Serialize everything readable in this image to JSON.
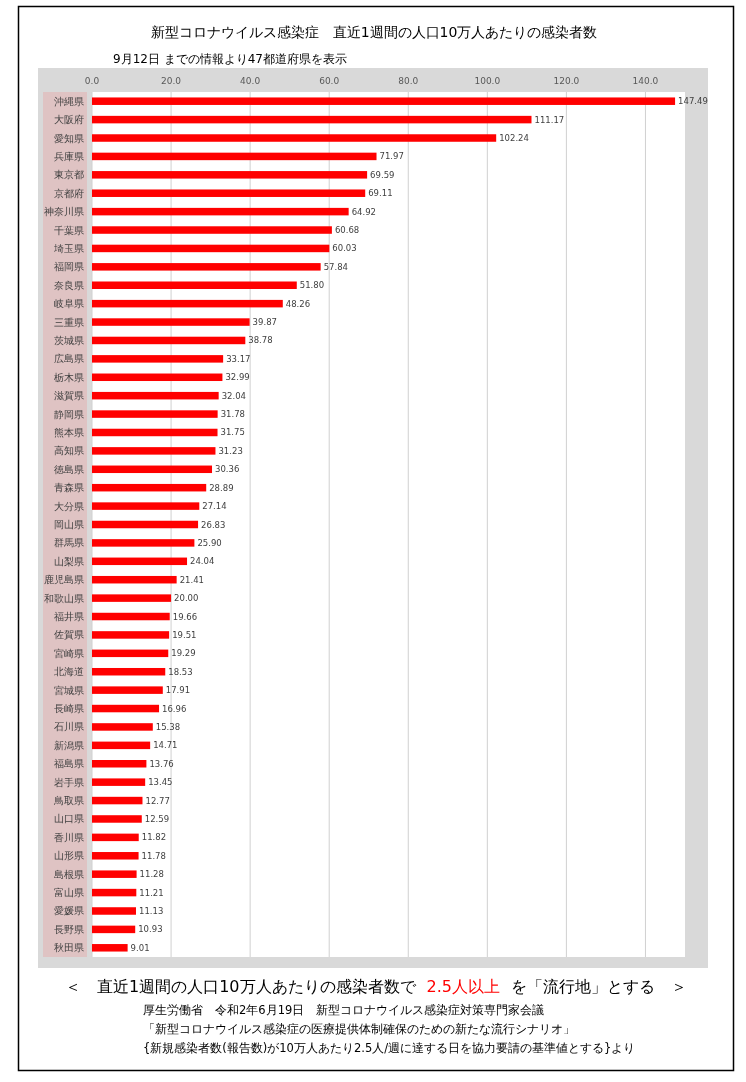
{
  "chart_data": {
    "type": "bar",
    "orientation": "horizontal",
    "title": "新型コロナウイルス感染症　直近1週間の人口10万人あたりの感染者数",
    "subtitle": "9月12日 までの情報より47都道府県を表示",
    "categories": [
      "沖縄県",
      "大阪府",
      "愛知県",
      "兵庫県",
      "東京都",
      "京都府",
      "神奈川県",
      "千葉県",
      "埼玉県",
      "福岡県",
      "奈良県",
      "岐阜県",
      "三重県",
      "茨城県",
      "広島県",
      "栃木県",
      "滋賀県",
      "静岡県",
      "熊本県",
      "高知県",
      "徳島県",
      "青森県",
      "大分県",
      "岡山県",
      "群馬県",
      "山梨県",
      "鹿児島県",
      "和歌山県",
      "福井県",
      "佐賀県",
      "宮崎県",
      "北海道",
      "宮城県",
      "長崎県",
      "石川県",
      "新潟県",
      "福島県",
      "岩手県",
      "鳥取県",
      "山口県",
      "香川県",
      "山形県",
      "島根県",
      "富山県",
      "愛媛県",
      "長野県",
      "秋田県"
    ],
    "values": [
      147.49,
      111.17,
      102.24,
      71.97,
      69.59,
      69.11,
      64.92,
      60.68,
      60.03,
      57.84,
      51.8,
      48.26,
      39.87,
      38.78,
      33.17,
      32.99,
      32.04,
      31.78,
      31.75,
      31.23,
      30.36,
      28.89,
      27.14,
      26.83,
      25.9,
      24.04,
      21.41,
      20.0,
      19.66,
      19.51,
      19.29,
      18.53,
      17.91,
      16.96,
      15.38,
      14.71,
      13.76,
      13.45,
      12.77,
      12.59,
      11.82,
      11.78,
      11.28,
      11.21,
      11.13,
      10.93,
      9.01
    ],
    "value_labels": [
      "147.49",
      "111.17",
      "102.24",
      "71.97",
      "69.59",
      "69.11",
      "64.92",
      "60.68",
      "60.03",
      "57.84",
      "51.80",
      "48.26",
      "39.87",
      "38.78",
      "33.17",
      "32.99",
      "32.04",
      "31.78",
      "31.75",
      "31.23",
      "30.36",
      "28.89",
      "27.14",
      "26.83",
      "25.90",
      "24.04",
      "21.41",
      "20.00",
      "19.66",
      "19.51",
      "19.29",
      "18.53",
      "17.91",
      "16.96",
      "15.38",
      "14.71",
      "13.76",
      "13.45",
      "12.77",
      "12.59",
      "11.82",
      "11.78",
      "11.28",
      "11.21",
      "11.13",
      "10.93",
      "9.01"
    ],
    "color": "#ff0000",
    "xlim": [
      0,
      150
    ],
    "xticks": [
      {
        "value": 0,
        "label": "0.0"
      },
      {
        "value": 20,
        "label": "20.0"
      },
      {
        "value": 40,
        "label": "40.0"
      },
      {
        "value": 60,
        "label": "60.0"
      },
      {
        "value": 80,
        "label": "80.0"
      },
      {
        "value": 100,
        "label": "100.0"
      },
      {
        "value": 120,
        "label": "120.0"
      },
      {
        "value": 140,
        "label": "140.0"
      }
    ],
    "grid": "x",
    "annotations": [
      "＜　直近1週間の人口10万人あたりの感染者数で",
      "2.5人以上",
      "を「流行地」とする　＞",
      "厚生労働省　令和2年6月19日　新型コロナウイルス感染症対策専門家会議",
      "「新型コロナウイルス感染症の医療提供体制確保のための新たな流行シナリオ」",
      "{新規感染者数(報告数)が10万人あたり2.5人/週に達する日を協力要請の基準値とする}より"
    ]
  }
}
